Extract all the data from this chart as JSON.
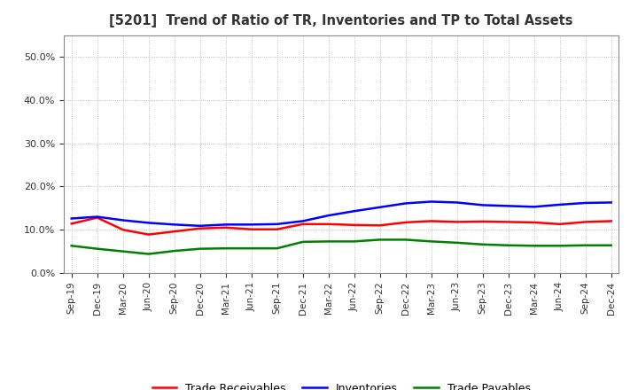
{
  "title": "[5201]  Trend of Ratio of TR, Inventories and TP to Total Assets",
  "x_labels": [
    "Sep-19",
    "Dec-19",
    "Mar-20",
    "Jun-20",
    "Sep-20",
    "Dec-20",
    "Mar-21",
    "Jun-21",
    "Sep-21",
    "Dec-21",
    "Mar-22",
    "Jun-22",
    "Sep-22",
    "Dec-22",
    "Mar-23",
    "Jun-23",
    "Sep-23",
    "Dec-23",
    "Mar-24",
    "Jun-24",
    "Sep-24",
    "Dec-24"
  ],
  "trade_receivables": [
    0.114,
    0.128,
    0.1,
    0.089,
    0.096,
    0.103,
    0.105,
    0.101,
    0.101,
    0.113,
    0.113,
    0.111,
    0.11,
    0.117,
    0.12,
    0.118,
    0.119,
    0.118,
    0.117,
    0.113,
    0.118,
    0.12
  ],
  "inventories": [
    0.126,
    0.13,
    0.122,
    0.116,
    0.112,
    0.109,
    0.112,
    0.112,
    0.113,
    0.12,
    0.133,
    0.143,
    0.152,
    0.161,
    0.165,
    0.163,
    0.157,
    0.155,
    0.153,
    0.158,
    0.162,
    0.163
  ],
  "trade_payables": [
    0.063,
    0.056,
    0.05,
    0.044,
    0.051,
    0.056,
    0.057,
    0.057,
    0.057,
    0.072,
    0.073,
    0.073,
    0.077,
    0.077,
    0.073,
    0.07,
    0.066,
    0.064,
    0.063,
    0.063,
    0.064,
    0.064
  ],
  "colors": {
    "trade_receivables": "#ff0000",
    "inventories": "#0000ff",
    "trade_payables": "#008000"
  },
  "ylim": [
    0.0,
    0.55
  ],
  "yticks": [
    0.0,
    0.1,
    0.2,
    0.3,
    0.4,
    0.5
  ],
  "background_color": "#ffffff",
  "grid_color": "#aaaaaa",
  "title_color": "#333333",
  "legend_labels": [
    "Trade Receivables",
    "Inventories",
    "Trade Payables"
  ]
}
